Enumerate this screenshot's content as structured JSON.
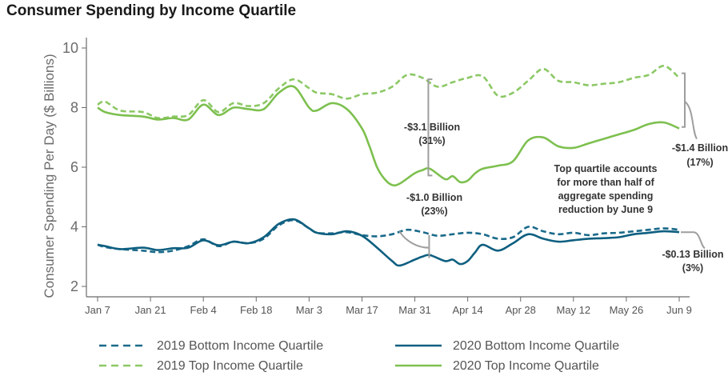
{
  "chart_data": {
    "type": "line",
    "title": "Consumer Spending by Income Quartile",
    "xlabel": "",
    "ylabel": "Consumer Spending Per Day ($ Billions)",
    "xlim": [
      0,
      154
    ],
    "ylim": [
      2,
      10
    ],
    "yticks": [
      2,
      4,
      6,
      8,
      10
    ],
    "ytick_labels": [
      "2",
      "4",
      "6",
      "8",
      "10"
    ],
    "xticks": [
      0,
      14,
      28,
      42,
      56,
      70,
      84,
      98,
      112,
      126,
      140,
      154
    ],
    "xtick_labels": [
      "Jan 7",
      "Jan 21",
      "Feb 4",
      "Feb 18",
      "Mar 3",
      "Mar 17",
      "Mar 31",
      "Apr 14",
      "Apr 28",
      "May 12",
      "May 26",
      "Jun 9"
    ],
    "grid": false,
    "legend_position": "bottom",
    "series": [
      {
        "name": "2019 Bottom Income Quartile",
        "color": "#1a6a8a",
        "dash": "dashed",
        "x": [
          0,
          2,
          6,
          12,
          16,
          20,
          24,
          28,
          32,
          36,
          40,
          44,
          48,
          52,
          56,
          58,
          62,
          66,
          70,
          74,
          78,
          82,
          86,
          90,
          94,
          98,
          102,
          106,
          110,
          114,
          118,
          122,
          126,
          130,
          134,
          138,
          142,
          146,
          150,
          154
        ],
        "y": [
          3.4,
          3.32,
          3.25,
          3.2,
          3.15,
          3.2,
          3.35,
          3.58,
          3.35,
          3.5,
          3.45,
          3.6,
          4.05,
          4.22,
          3.95,
          3.8,
          3.78,
          3.82,
          3.72,
          3.68,
          3.75,
          3.9,
          3.82,
          3.7,
          3.75,
          3.8,
          3.75,
          3.6,
          3.65,
          4.0,
          3.85,
          3.75,
          3.8,
          3.72,
          3.78,
          3.8,
          3.85,
          3.9,
          3.95,
          3.9
        ]
      },
      {
        "name": "2020 Bottom Income Quartile",
        "color": "#0e5f80",
        "dash": "solid",
        "x": [
          0,
          2,
          6,
          12,
          16,
          20,
          24,
          28,
          32,
          36,
          40,
          44,
          48,
          52,
          56,
          58,
          62,
          66,
          70,
          74,
          78,
          80,
          84,
          86,
          88,
          92,
          94,
          96,
          98,
          100,
          102,
          106,
          110,
          114,
          118,
          122,
          126,
          130,
          134,
          138,
          142,
          146,
          150,
          154
        ],
        "y": [
          3.4,
          3.35,
          3.25,
          3.3,
          3.22,
          3.28,
          3.3,
          3.55,
          3.38,
          3.5,
          3.45,
          3.65,
          4.1,
          4.25,
          3.95,
          3.8,
          3.75,
          3.85,
          3.7,
          3.3,
          2.85,
          2.7,
          2.9,
          3.0,
          3.05,
          2.85,
          2.9,
          2.75,
          2.85,
          3.15,
          3.4,
          3.2,
          3.45,
          3.75,
          3.6,
          3.5,
          3.55,
          3.6,
          3.62,
          3.65,
          3.75,
          3.8,
          3.85,
          3.82
        ]
      },
      {
        "name": "2019 Top Income Quartile",
        "color": "#8cc865",
        "dash": "dashed",
        "x": [
          0,
          2,
          6,
          12,
          16,
          20,
          24,
          28,
          32,
          36,
          40,
          44,
          48,
          52,
          56,
          58,
          62,
          66,
          70,
          74,
          78,
          82,
          86,
          90,
          94,
          98,
          102,
          106,
          110,
          114,
          118,
          122,
          126,
          130,
          134,
          138,
          142,
          146,
          150,
          154
        ],
        "y": [
          8.1,
          8.2,
          7.9,
          7.85,
          7.65,
          7.7,
          7.75,
          8.25,
          7.85,
          8.15,
          8.05,
          8.15,
          8.65,
          8.95,
          8.65,
          8.5,
          8.45,
          8.3,
          8.45,
          8.5,
          8.7,
          9.1,
          9.0,
          8.7,
          8.85,
          9.0,
          9.05,
          8.4,
          8.5,
          8.9,
          9.3,
          8.9,
          8.85,
          8.75,
          8.8,
          8.85,
          9.0,
          9.1,
          9.4,
          9.0
        ]
      },
      {
        "name": "2020 Top Income Quartile",
        "color": "#7dc04f",
        "dash": "solid",
        "x": [
          0,
          2,
          6,
          12,
          16,
          20,
          24,
          28,
          32,
          36,
          40,
          44,
          48,
          52,
          56,
          58,
          62,
          66,
          70,
          72,
          74,
          76,
          78,
          80,
          84,
          86,
          88,
          92,
          94,
          96,
          98,
          100,
          102,
          106,
          110,
          114,
          118,
          122,
          126,
          130,
          134,
          138,
          142,
          146,
          150,
          154
        ],
        "y": [
          8.0,
          7.85,
          7.75,
          7.7,
          7.6,
          7.65,
          7.6,
          8.1,
          7.75,
          8.0,
          7.95,
          7.95,
          8.5,
          8.7,
          8.0,
          7.9,
          8.15,
          7.95,
          7.3,
          6.7,
          6.0,
          5.6,
          5.4,
          5.45,
          5.8,
          5.9,
          5.95,
          5.6,
          5.7,
          5.5,
          5.55,
          5.8,
          5.95,
          6.05,
          6.2,
          6.9,
          7.0,
          6.7,
          6.65,
          6.8,
          6.95,
          7.1,
          7.25,
          7.45,
          7.5,
          7.3
        ]
      }
    ],
    "annotations": [
      {
        "lines": [
          "-$3.1 Billion",
          "(31%)"
        ]
      },
      {
        "lines": [
          "-$1.0 Billion",
          "(23%)"
        ]
      },
      {
        "lines": [
          "-$1.4 Billion",
          "(17%)"
        ]
      },
      {
        "lines": [
          "-$0.13 Billion",
          "(3%)"
        ]
      },
      {
        "lines": [
          "Top quartile accounts",
          "for more than half of",
          "aggregate spending",
          "reduction by June 9"
        ]
      }
    ]
  }
}
